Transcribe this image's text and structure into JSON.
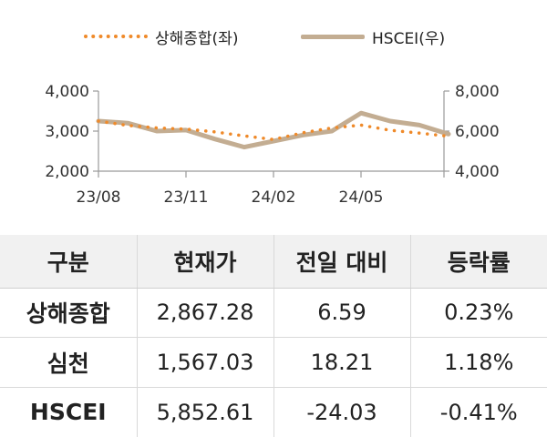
{
  "chart_data": {
    "type": "line",
    "legend": [
      {
        "label": "상해종합(좌)",
        "style": "dotted",
        "color": "#ef8a2a"
      },
      {
        "label": "HSCEI(우)",
        "style": "solid",
        "color": "#c3ad92"
      }
    ],
    "x_tick_labels": [
      "23/08",
      "23/11",
      "24/02",
      "24/05"
    ],
    "y_left": {
      "ticks": [
        "4,000",
        "3,000",
        "2,000"
      ],
      "ylim": [
        2000,
        4000
      ]
    },
    "y_right": {
      "ticks": [
        "8,000",
        "6,000",
        "4,000"
      ],
      "ylim": [
        4000,
        8000
      ]
    },
    "series": [
      {
        "name": "상해종합(좌)",
        "axis": "left",
        "x": [
          "2023-08",
          "2023-09",
          "2023-10",
          "2023-11",
          "2023-12",
          "2024-01",
          "2024-02",
          "2024-03",
          "2024-04",
          "2024-05",
          "2024-06",
          "2024-07",
          "2024-08"
        ],
        "y": [
          3250,
          3140,
          3080,
          3050,
          2980,
          2880,
          2790,
          2960,
          3080,
          3150,
          3020,
          2950,
          2870
        ]
      },
      {
        "name": "HSCEI(우)",
        "axis": "right",
        "x": [
          "2023-08",
          "2023-09",
          "2023-10",
          "2023-11",
          "2023-12",
          "2024-01",
          "2024-02",
          "2024-03",
          "2024-04",
          "2024-05",
          "2024-06",
          "2024-07",
          "2024-08"
        ],
        "y": [
          6500,
          6400,
          6000,
          6050,
          5600,
          5200,
          5500,
          5800,
          6000,
          6900,
          6500,
          6300,
          5850
        ]
      }
    ]
  },
  "table": {
    "headers": [
      "구분",
      "현재가",
      "전일 대비",
      "등락률"
    ],
    "rows": [
      [
        "상해종합",
        "2,867.28",
        "6.59",
        "0.23%"
      ],
      [
        "심천",
        "1,567.03",
        "18.21",
        "1.18%"
      ],
      [
        "HSCEI",
        "5,852.61",
        "-24.03",
        "-0.41%"
      ]
    ]
  }
}
